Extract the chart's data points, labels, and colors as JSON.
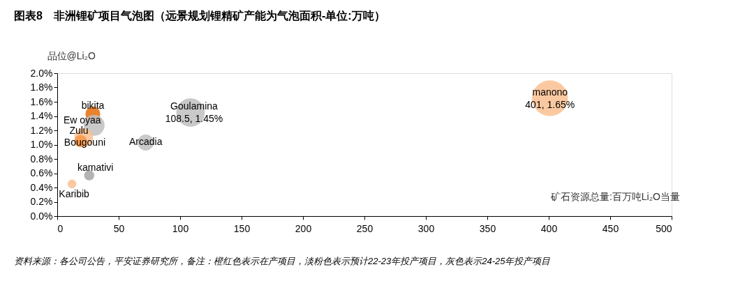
{
  "chart_data": {
    "type": "bubble",
    "title": "图表8　非洲锂矿项目气泡图（远景规划锂精矿产能为气泡面积-单位:万吨）",
    "xlabel": "矿石资源总量:百万吨Li₂O当量",
    "ylabel": "品位@Li₂O",
    "annotations": [
      "资料来源：各公司公告，平安证券研究所，备注：橙红色表示在产项目，淡粉色表示预计22-23年投产项目，灰色表示24-25年投产项目"
    ],
    "xlim": [
      0,
      500
    ],
    "xticks": [
      0,
      50,
      100,
      150,
      200,
      250,
      300,
      350,
      400,
      450,
      500
    ],
    "ylim": [
      0,
      2.0
    ],
    "yticks": [
      {
        "value": 0,
        "label": "0.0%"
      },
      {
        "value": 0.2,
        "label": "0.2%"
      },
      {
        "value": 0.4,
        "label": "0.4%"
      },
      {
        "value": 0.6,
        "label": "0.6%"
      },
      {
        "value": 0.8,
        "label": "0.8%"
      },
      {
        "value": 1.0,
        "label": "1.0%"
      },
      {
        "value": 1.2,
        "label": "1.2%"
      },
      {
        "value": 1.4,
        "label": "1.4%"
      },
      {
        "value": 1.6,
        "label": "1.6%"
      },
      {
        "value": 1.8,
        "label": "1.8%"
      },
      {
        "value": 2.0,
        "label": "2.0%"
      }
    ],
    "grid": false,
    "series": [
      {
        "name": "bikita",
        "color": "#e46c0a",
        "x": [
          29
        ],
        "values": [
          1.43
        ],
        "sizes": [
          0.17
        ]
      },
      {
        "name": "Ew oyaa",
        "color": "#bfbfbf",
        "x": [
          30
        ],
        "values": [
          1.27
        ],
        "sizes": [
          0.34
        ]
      },
      {
        "name": "Zulu",
        "color": "#fac090",
        "x": [
          21.6
        ],
        "values": [
          1.1
        ],
        "sizes": [
          0.27
        ]
      },
      {
        "name": "Bougouni",
        "color": "#f79646",
        "x": [
          19
        ],
        "values": [
          1.05
        ],
        "sizes": [
          0.12
        ]
      },
      {
        "name": "Arcadia",
        "color": "#bfbfbf",
        "x": [
          72
        ],
        "values": [
          1.03
        ],
        "sizes": [
          0.2
        ]
      },
      {
        "name": "Goulamina",
        "color": "#bfbfbf",
        "x": [
          108.5
        ],
        "values": [
          1.45
        ],
        "sizes": [
          0.63
        ],
        "value_labels": [
          "108.5, 1.45%"
        ]
      },
      {
        "name": "kamativi",
        "color": "#a6a6a6",
        "x": [
          26
        ],
        "values": [
          0.57
        ],
        "sizes": [
          0.08
        ]
      },
      {
        "name": "Karibib",
        "color": "#fac090",
        "x": [
          12
        ],
        "values": [
          0.45
        ],
        "sizes": [
          0.06
        ]
      },
      {
        "name": "manono",
        "color": "#fac090",
        "x": [
          401
        ],
        "values": [
          1.65
        ],
        "sizes": [
          1
        ],
        "value_labels": [
          "401, 1.65%"
        ]
      }
    ]
  }
}
